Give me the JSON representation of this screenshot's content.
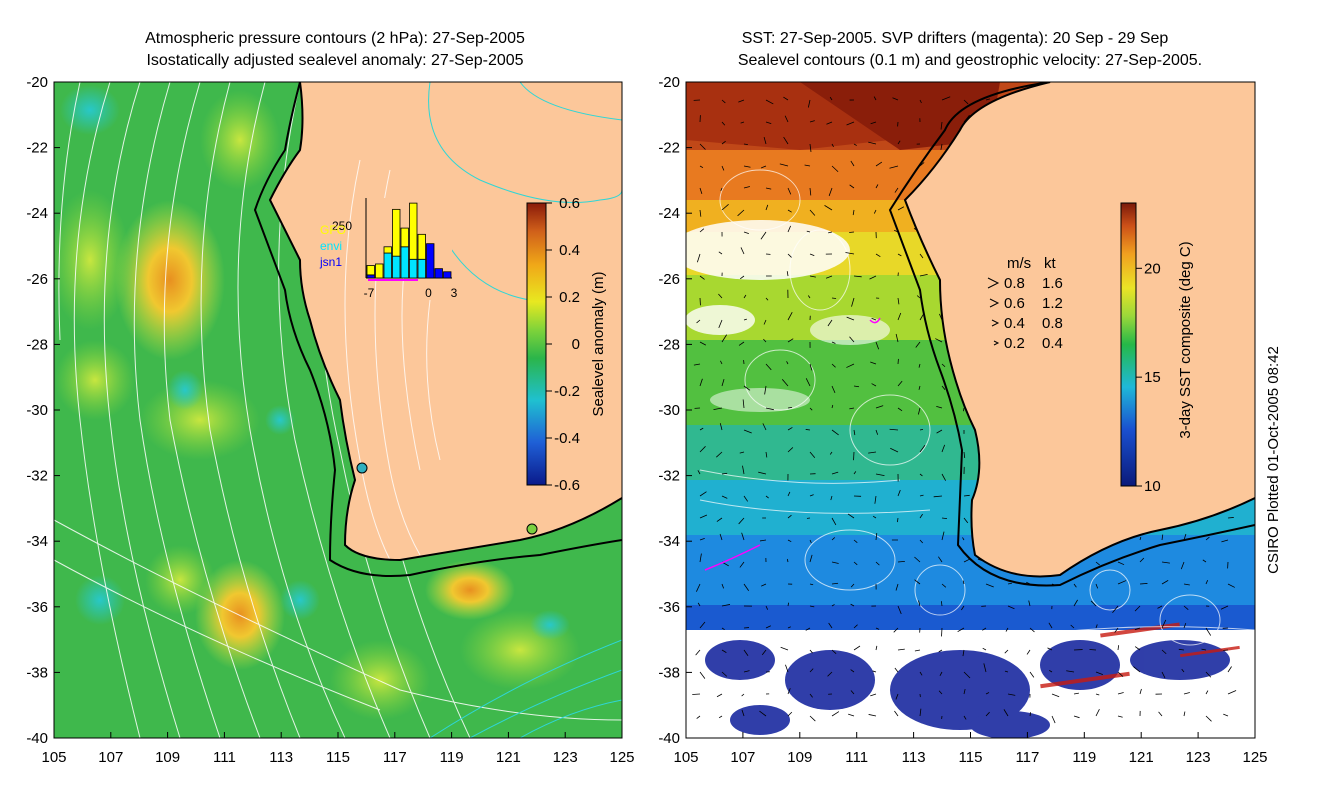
{
  "left_panel": {
    "title_line1": "Atmospheric pressure contours (2 hPa): 27-Sep-2005",
    "title_line2": "Isostatically adjusted sealevel anomaly: 27-Sep-2005",
    "x_ticks": [
      "105",
      "107",
      "109",
      "111",
      "113",
      "115",
      "117",
      "119",
      "121",
      "123",
      "125"
    ],
    "y_ticks": [
      "-20",
      "-22",
      "-24",
      "-26",
      "-28",
      "-30",
      "-32",
      "-34",
      "-36",
      "-38",
      "-40"
    ],
    "colorbar": {
      "label": "Sealevel anomaly (m)",
      "ticks": [
        "0.6",
        "0.4",
        "0.2",
        "0",
        "-0.2",
        "-0.4",
        "-0.6"
      ],
      "range": [
        -0.6,
        0.6
      ]
    },
    "inset": {
      "y_max_label": "250",
      "x_ticks": [
        "-7",
        "0",
        "3"
      ],
      "legend": [
        {
          "label": "GFO",
          "color": "#ffff00"
        },
        {
          "label": "envi",
          "color": "#00e5ff"
        },
        {
          "label": "jsn1",
          "color": "#0000ff"
        }
      ],
      "bars": [
        {
          "day": -7,
          "gfo": 30,
          "envi": 0,
          "jsn1": 10
        },
        {
          "day": -6,
          "gfo": 45,
          "envi": 0,
          "jsn1": 0
        },
        {
          "day": -5,
          "gfo": 20,
          "envi": 80,
          "jsn1": 0
        },
        {
          "day": -4,
          "gfo": 150,
          "envi": 70,
          "jsn1": 0
        },
        {
          "day": -3,
          "gfo": 60,
          "envi": 100,
          "jsn1": 0
        },
        {
          "day": -2,
          "gfo": 180,
          "envi": 60,
          "jsn1": 0
        },
        {
          "day": -1,
          "gfo": 80,
          "envi": 60,
          "jsn1": 0
        },
        {
          "day": 0,
          "gfo": 0,
          "envi": 0,
          "jsn1": 110
        },
        {
          "day": 1,
          "gfo": 0,
          "envi": 0,
          "jsn1": 30
        },
        {
          "day": 2,
          "gfo": 0,
          "envi": 0,
          "jsn1": 20
        }
      ]
    }
  },
  "right_panel": {
    "title_line1": "SST: 27-Sep-2005. SVP drifters (magenta): 20 Sep - 29 Sep",
    "title_line2": "Sealevel contours (0.1 m) and geostrophic velocity: 27-Sep-2005.",
    "x_ticks": [
      "105",
      "107",
      "109",
      "111",
      "113",
      "115",
      "117",
      "119",
      "121",
      "123",
      "125"
    ],
    "y_ticks": [
      "-20",
      "-22",
      "-24",
      "-26",
      "-28",
      "-30",
      "-32",
      "-34",
      "-36",
      "-38",
      "-40"
    ],
    "colorbar": {
      "label": "3-day SST composite (deg C)",
      "ticks": [
        "20",
        "15",
        "10"
      ],
      "range": [
        10,
        23
      ]
    },
    "velocity_legend": {
      "header_ms": "m/s",
      "header_kt": "kt",
      "rows": [
        {
          "ms": "0.8",
          "kt": "1.6"
        },
        {
          "ms": "0.6",
          "kt": "1.2"
        },
        {
          "ms": "0.4",
          "kt": "0.8"
        },
        {
          "ms": "0.2",
          "kt": "0.4"
        }
      ]
    }
  },
  "credit": "CSIRO Plotted 01-Oct-2005 08:42",
  "colors": {
    "land": "#fcc79a",
    "ocean_green": "#36b84a",
    "coast": "#000000",
    "contour_white": "#ffffff",
    "contour_cyan": "#2fd6d6"
  }
}
